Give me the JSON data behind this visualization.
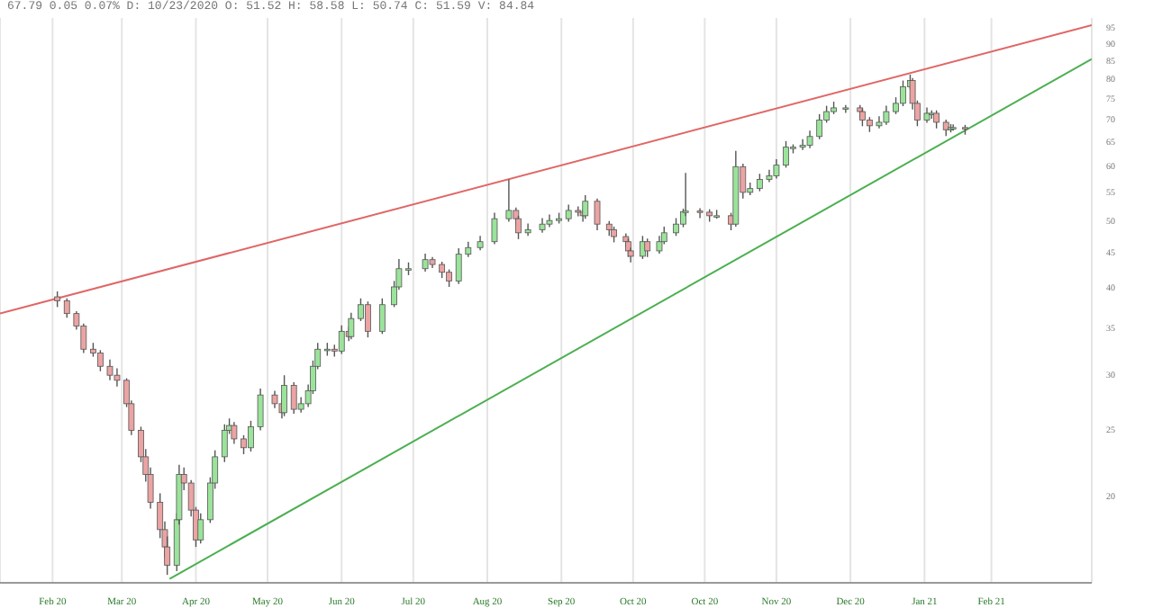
{
  "chart_data": {
    "type": "candlestick",
    "title": "67.79  0.05  0.07%  D: 10/23/2020  O: 51.52  H: 58.58  L: 50.74  C: 51.59  V: 84.84",
    "x": [
      "2020-02-03",
      "2020-02-07",
      "2020-02-11",
      "2020-02-14",
      "2020-02-18",
      "2020-02-21",
      "2020-02-25",
      "2020-02-28",
      "2020-03-03",
      "2020-03-05",
      "2020-03-09",
      "2020-03-11",
      "2020-03-13",
      "2020-03-17",
      "2020-03-19",
      "2020-03-20",
      "2020-03-24",
      "2020-03-25",
      "2020-03-27",
      "2020-03-30",
      "2020-04-01",
      "2020-04-03",
      "2020-04-07",
      "2020-04-09",
      "2020-04-13",
      "2020-04-15",
      "2020-04-17",
      "2020-04-21",
      "2020-04-24",
      "2020-04-28",
      "2020-05-04",
      "2020-05-07",
      "2020-05-08",
      "2020-05-12",
      "2020-05-15",
      "2020-05-18",
      "2020-05-20",
      "2020-05-22",
      "2020-05-26",
      "2020-05-29",
      "2020-06-01",
      "2020-06-04",
      "2020-06-05",
      "2020-06-09",
      "2020-06-12",
      "2020-06-18",
      "2020-06-23",
      "2020-06-25",
      "2020-06-29",
      "2020-07-06",
      "2020-07-09",
      "2020-07-13",
      "2020-07-16",
      "2020-07-20",
      "2020-07-24",
      "2020-07-29",
      "2020-08-04",
      "2020-08-10",
      "2020-08-13",
      "2020-08-14",
      "2020-08-18",
      "2020-08-24",
      "2020-08-27",
      "2020-08-31",
      "2020-09-04",
      "2020-09-08",
      "2020-09-10",
      "2020-09-11",
      "2020-09-16",
      "2020-09-21",
      "2020-09-23",
      "2020-09-28",
      "2020-09-29",
      "2020-09-30",
      "2020-10-05",
      "2020-10-07",
      "2020-10-12",
      "2020-10-14",
      "2020-10-19",
      "2020-10-22",
      "2020-10-23",
      "2020-10-29",
      "2020-11-02",
      "2020-11-05",
      "2020-11-11",
      "2020-11-13",
      "2020-11-16",
      "2020-11-19",
      "2020-11-23",
      "2020-11-27",
      "2020-11-30",
      "2020-12-04",
      "2020-12-07",
      "2020-12-11",
      "2020-12-14",
      "2020-12-18",
      "2020-12-21",
      "2020-12-24",
      "2020-12-29",
      "2021-01-04",
      "2021-01-05",
      "2021-01-08",
      "2021-01-12",
      "2021-01-15",
      "2021-01-19",
      "2021-01-22",
      "2021-01-25",
      "2021-01-26",
      "2021-01-28",
      "2021-02-01",
      "2021-02-03",
      "2021-02-05",
      "2021-02-09",
      "2021-02-11",
      "2021-02-12",
      "2021-02-17"
    ],
    "ohlc": [
      [
        38.8,
        39.5,
        37.5,
        38.3
      ],
      [
        38.3,
        38.6,
        36.2,
        36.7
      ],
      [
        36.7,
        37.0,
        34.8,
        35.2
      ],
      [
        35.2,
        35.5,
        32.2,
        32.6
      ],
      [
        32.6,
        33.3,
        31.8,
        32.2
      ],
      [
        32.2,
        32.5,
        30.3,
        30.8
      ],
      [
        30.8,
        31.5,
        29.4,
        29.9
      ],
      [
        29.9,
        30.6,
        28.8,
        29.4
      ],
      [
        29.4,
        29.6,
        26.9,
        27.2
      ],
      [
        27.2,
        27.5,
        24.5,
        24.9
      ],
      [
        24.9,
        25.2,
        22.4,
        22.8
      ],
      [
        22.8,
        23.4,
        21.0,
        21.5
      ],
      [
        21.5,
        22.0,
        19.2,
        19.6
      ],
      [
        19.6,
        20.2,
        17.4,
        17.9
      ],
      [
        17.9,
        18.4,
        16.3,
        16.9
      ],
      [
        16.9,
        17.5,
        15.4,
        15.9
      ],
      [
        15.9,
        18.9,
        15.6,
        18.5
      ],
      [
        18.5,
        22.2,
        18.2,
        21.5
      ],
      [
        21.5,
        22.0,
        20.4,
        20.9
      ],
      [
        20.9,
        21.1,
        18.7,
        19.1
      ],
      [
        19.1,
        19.3,
        16.9,
        17.3
      ],
      [
        17.3,
        18.9,
        17.1,
        18.5
      ],
      [
        18.5,
        21.3,
        18.3,
        20.9
      ],
      [
        20.9,
        23.3,
        20.5,
        22.8
      ],
      [
        22.8,
        25.4,
        22.4,
        24.9
      ],
      [
        24.9,
        25.9,
        24.6,
        25.3
      ],
      [
        25.3,
        25.6,
        23.8,
        24.2
      ],
      [
        24.2,
        24.5,
        23.0,
        23.5
      ],
      [
        23.5,
        25.7,
        23.2,
        25.2
      ],
      [
        25.2,
        28.6,
        24.9,
        28.0
      ],
      [
        28.0,
        28.4,
        26.8,
        27.2
      ],
      [
        27.2,
        27.6,
        25.9,
        26.4
      ],
      [
        26.4,
        29.9,
        26.1,
        28.9
      ],
      [
        28.9,
        29.2,
        26.3,
        26.7
      ],
      [
        26.7,
        27.8,
        26.4,
        27.2
      ],
      [
        27.2,
        29.0,
        26.9,
        28.4
      ],
      [
        28.4,
        31.4,
        28.1,
        30.8
      ],
      [
        30.8,
        33.3,
        30.5,
        32.6
      ],
      [
        32.6,
        33.3,
        31.9,
        32.6
      ],
      [
        32.6,
        33.1,
        31.8,
        32.4
      ],
      [
        32.4,
        35.3,
        32.1,
        34.6
      ],
      [
        34.6,
        35.1,
        33.5,
        34.0
      ],
      [
        34.0,
        36.8,
        33.7,
        36.1
      ],
      [
        36.1,
        38.6,
        35.8,
        37.8
      ],
      [
        37.8,
        38.2,
        33.9,
        34.6
      ],
      [
        34.6,
        38.6,
        34.3,
        37.8
      ],
      [
        37.8,
        40.9,
        37.5,
        40.1
      ],
      [
        40.1,
        44.0,
        39.7,
        42.6
      ],
      [
        42.6,
        43.5,
        41.7,
        42.6
      ],
      [
        42.6,
        44.8,
        42.2,
        43.9
      ],
      [
        43.9,
        44.3,
        42.7,
        43.2
      ],
      [
        43.2,
        43.6,
        41.3,
        42.1
      ],
      [
        42.1,
        42.5,
        40.1,
        40.9
      ],
      [
        40.9,
        45.6,
        40.5,
        44.7
      ],
      [
        44.7,
        46.6,
        44.3,
        45.7
      ],
      [
        45.7,
        47.5,
        45.3,
        46.6
      ],
      [
        46.6,
        51.3,
        46.2,
        50.3
      ],
      [
        50.3,
        57.3,
        49.8,
        51.7
      ],
      [
        51.7,
        52.2,
        49.3,
        50.3
      ],
      [
        50.3,
        50.8,
        47.0,
        48.0
      ],
      [
        48.0,
        49.5,
        47.5,
        48.5
      ],
      [
        48.5,
        50.4,
        48.0,
        49.4
      ],
      [
        49.4,
        51.0,
        48.9,
        50.0
      ],
      [
        50.0,
        51.3,
        49.5,
        50.3
      ],
      [
        50.3,
        52.7,
        49.8,
        51.7
      ],
      [
        51.7,
        52.4,
        50.7,
        51.4
      ],
      [
        51.4,
        51.9,
        49.8,
        50.8
      ],
      [
        50.8,
        54.4,
        50.3,
        53.3
      ],
      [
        53.3,
        53.8,
        48.4,
        49.4
      ],
      [
        49.4,
        49.9,
        47.5,
        48.5
      ],
      [
        48.5,
        49.0,
        46.5,
        47.4
      ],
      [
        47.4,
        47.9,
        45.7,
        46.6
      ],
      [
        46.6,
        47.1,
        44.3,
        45.2
      ],
      [
        45.2,
        45.7,
        43.5,
        44.4
      ],
      [
        44.4,
        47.5,
        44.0,
        46.6
      ],
      [
        46.6,
        47.1,
        44.3,
        45.2
      ],
      [
        45.2,
        47.5,
        44.8,
        46.6
      ],
      [
        46.6,
        49.0,
        46.2,
        48.0
      ],
      [
        48.0,
        50.4,
        47.5,
        49.4
      ],
      [
        49.4,
        52.0,
        48.9,
        51.5
      ],
      [
        51.52,
        58.58,
        50.74,
        51.59
      ],
      [
        51.6,
        52.1,
        50.4,
        51.4
      ],
      [
        51.4,
        51.9,
        49.8,
        50.8
      ],
      [
        50.8,
        51.8,
        50.3,
        50.8
      ],
      [
        50.8,
        51.3,
        48.4,
        49.4
      ],
      [
        49.4,
        63.0,
        49.0,
        59.8
      ],
      [
        59.8,
        60.4,
        53.8,
        54.9
      ],
      [
        54.9,
        56.7,
        54.4,
        55.6
      ],
      [
        55.6,
        58.4,
        55.1,
        57.3
      ],
      [
        57.3,
        59.2,
        56.8,
        58.0
      ],
      [
        58.0,
        61.3,
        57.5,
        60.1
      ],
      [
        60.1,
        65.1,
        59.6,
        63.8
      ],
      [
        63.8,
        64.4,
        62.5,
        63.8
      ],
      [
        63.8,
        65.5,
        63.2,
        64.2
      ],
      [
        64.2,
        67.4,
        63.6,
        66.1
      ],
      [
        66.1,
        71.2,
        65.5,
        69.8
      ],
      [
        69.8,
        73.2,
        69.2,
        71.8
      ],
      [
        71.8,
        74.2,
        71.2,
        72.7
      ],
      [
        72.7,
        73.4,
        71.5,
        72.7
      ],
      [
        72.7,
        73.4,
        70.4,
        71.8
      ],
      [
        71.8,
        72.5,
        68.4,
        69.8
      ],
      [
        69.8,
        70.5,
        67.1,
        68.5
      ],
      [
        68.5,
        70.7,
        67.9,
        69.3
      ],
      [
        69.3,
        73.2,
        68.7,
        71.8
      ],
      [
        71.8,
        75.3,
        71.2,
        73.8
      ],
      [
        73.8,
        79.6,
        73.1,
        78.0
      ],
      [
        78.0,
        81.2,
        77.3,
        79.6
      ],
      [
        79.6,
        80.3,
        72.3,
        73.8
      ],
      [
        73.8,
        74.5,
        68.4,
        69.8
      ],
      [
        69.8,
        72.8,
        69.2,
        71.4
      ],
      [
        71.4,
        72.1,
        70.1,
        71.4
      ],
      [
        71.4,
        72.1,
        67.9,
        69.3
      ],
      [
        69.3,
        69.9,
        66.2,
        67.6
      ],
      [
        67.6,
        68.9,
        67.0,
        68.1
      ],
      [
        68.1,
        68.8,
        67.4,
        68.1
      ],
      [
        68.1,
        68.7,
        66.5,
        67.79
      ]
    ],
    "series": [
      {
        "type": "line",
        "color": "#e06666",
        "x": [
          "2020-01-10",
          "2021-04-11"
        ],
        "values": [
          36.7,
          95.7
        ]
      },
      {
        "type": "line",
        "color": "#4caf50",
        "x": [
          "2020-03-21",
          "2021-04-11"
        ],
        "values": [
          15.2,
          85.5
        ]
      }
    ],
    "log": "y",
    "grid": "x",
    "xlim": [
      "2020-01-10",
      "2021-04-11"
    ],
    "xticks": [
      {
        "value": "2020-02-01",
        "label": "Feb 20"
      },
      {
        "value": "2020-03-01",
        "label": "Mar 20"
      },
      {
        "value": "2020-04-01",
        "label": "Apr 20"
      },
      {
        "value": "2020-05-01",
        "label": "May 20"
      },
      {
        "value": "2020-06-01",
        "label": "Jun 20"
      },
      {
        "value": "2020-07-01",
        "label": "Jul 20"
      },
      {
        "value": "2020-08-01",
        "label": "Aug 20"
      },
      {
        "value": "2020-09-01",
        "label": "Sep 20"
      },
      {
        "value": "2020-10-01",
        "label": "Oct 20"
      },
      {
        "value": "2020-10-31",
        "label": "Oct 20"
      },
      {
        "value": "2020-11-30",
        "label": "Nov 20"
      },
      {
        "value": "2020-12-31",
        "label": "Dec 20"
      },
      {
        "value": "2021-01-31",
        "label": "Jan 21"
      },
      {
        "value": "2021-02-28",
        "label": "Feb 21"
      }
    ],
    "ylim": [
      15,
      98
    ],
    "yticks": [
      20,
      25,
      30,
      35,
      40,
      45,
      50,
      55,
      60,
      65,
      70,
      75,
      80,
      85,
      90,
      95
    ]
  }
}
